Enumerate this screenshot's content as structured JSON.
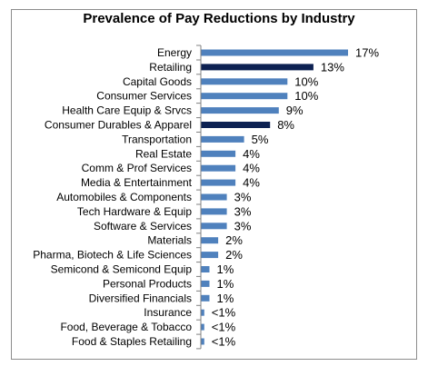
{
  "chart_data": {
    "type": "bar",
    "orientation": "horizontal",
    "title": "Prevalence of Pay Reductions by Industry",
    "xlabel": "",
    "ylabel": "",
    "xlim": [
      0,
      17
    ],
    "grid": false,
    "legend": "none",
    "colors": {
      "default": "#4f81bd",
      "highlight": "#0d2152"
    },
    "bars": [
      {
        "category": "Energy",
        "value": 17,
        "label": "17%",
        "highlight": false
      },
      {
        "category": "Retailing",
        "value": 13,
        "label": "13%",
        "highlight": true
      },
      {
        "category": "Capital Goods",
        "value": 10,
        "label": "10%",
        "highlight": false
      },
      {
        "category": "Consumer Services",
        "value": 10,
        "label": "10%",
        "highlight": false
      },
      {
        "category": "Health Care Equip & Srvcs",
        "value": 9,
        "label": "9%",
        "highlight": false
      },
      {
        "category": "Consumer Durables & Apparel",
        "value": 8,
        "label": "8%",
        "highlight": true
      },
      {
        "category": "Transportation",
        "value": 5,
        "label": "5%",
        "highlight": false
      },
      {
        "category": "Real Estate",
        "value": 4,
        "label": "4%",
        "highlight": false
      },
      {
        "category": "Comm & Prof Services",
        "value": 4,
        "label": "4%",
        "highlight": false
      },
      {
        "category": "Media & Entertainment",
        "value": 4,
        "label": "4%",
        "highlight": false
      },
      {
        "category": "Automobiles & Components",
        "value": 3,
        "label": "3%",
        "highlight": false
      },
      {
        "category": "Tech Hardware & Equip",
        "value": 3,
        "label": "3%",
        "highlight": false
      },
      {
        "category": "Software & Services",
        "value": 3,
        "label": "3%",
        "highlight": false
      },
      {
        "category": "Materials",
        "value": 2,
        "label": "2%",
        "highlight": false
      },
      {
        "category": "Pharma, Biotech & Life Sciences",
        "value": 2,
        "label": "2%",
        "highlight": false
      },
      {
        "category": "Semicond & Semicond Equip",
        "value": 1,
        "label": "1%",
        "highlight": false
      },
      {
        "category": "Personal Products",
        "value": 1,
        "label": "1%",
        "highlight": false
      },
      {
        "category": "Diversified Financials",
        "value": 1,
        "label": "1%",
        "highlight": false
      },
      {
        "category": "Insurance",
        "value": 0.4,
        "label": "<1%",
        "highlight": false
      },
      {
        "category": "Food, Beverage & Tobacco",
        "value": 0.4,
        "label": "<1%",
        "highlight": false
      },
      {
        "category": "Food & Staples Retailing",
        "value": 0.4,
        "label": "<1%",
        "highlight": false
      }
    ]
  }
}
